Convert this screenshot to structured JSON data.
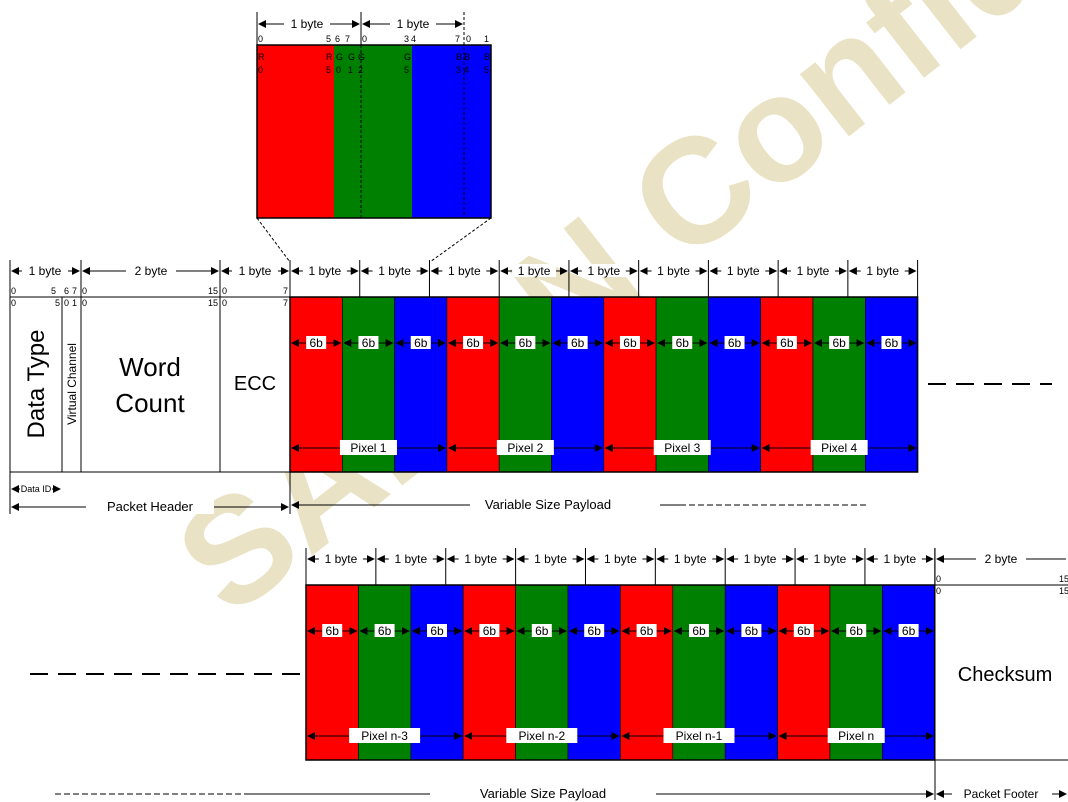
{
  "colors": {
    "red": "#ff0000",
    "green": "#008000",
    "blue": "#0000ff",
    "watermark": "#d9cc96"
  },
  "watermark": {
    "text": "SADAN Confidential"
  },
  "labels": {
    "one_byte": "1 byte",
    "two_byte": "2 byte",
    "six_b": "6b",
    "data_type": "Data Type",
    "virtual_channel": "Virtual Channel",
    "word": "Word",
    "count": "Count",
    "ecc": "ECC",
    "checksum": "Checksum",
    "data_id": "Data ID",
    "packet_header": "Packet Header",
    "variable_size_payload": "Variable Size Payload",
    "packet_footer": "Packet Footer"
  },
  "top_zoom": {
    "bit_top": [
      "0",
      "5",
      "6",
      "7",
      "0",
      "3",
      "4",
      "7",
      "0",
      "1"
    ],
    "ch_row1": [
      "R",
      "R",
      "G",
      "G",
      "G",
      "G",
      "B",
      "B",
      "B"
    ],
    "ch_row2": [
      "0",
      "5",
      "0",
      "1",
      "2",
      "5",
      "3",
      "4",
      "5"
    ]
  },
  "header_bits": {
    "dt_top": [
      "0",
      "5",
      "6",
      "7"
    ],
    "dt_bottom": [
      "0",
      "5",
      "0",
      "1"
    ],
    "wc_top": [
      "0",
      "15"
    ],
    "wc_bottom": [
      "0",
      "15"
    ],
    "ecc_top": [
      "0",
      "7"
    ],
    "ecc_bottom": [
      "0",
      "7"
    ]
  },
  "footer_bits": [
    "0",
    "15"
  ],
  "pixels_row1": [
    "Pixel 1",
    "Pixel 2",
    "Pixel 3",
    "Pixel 4"
  ],
  "pixels_row2": [
    "Pixel n-3",
    "Pixel n-2",
    "Pixel n-1",
    "Pixel n"
  ]
}
